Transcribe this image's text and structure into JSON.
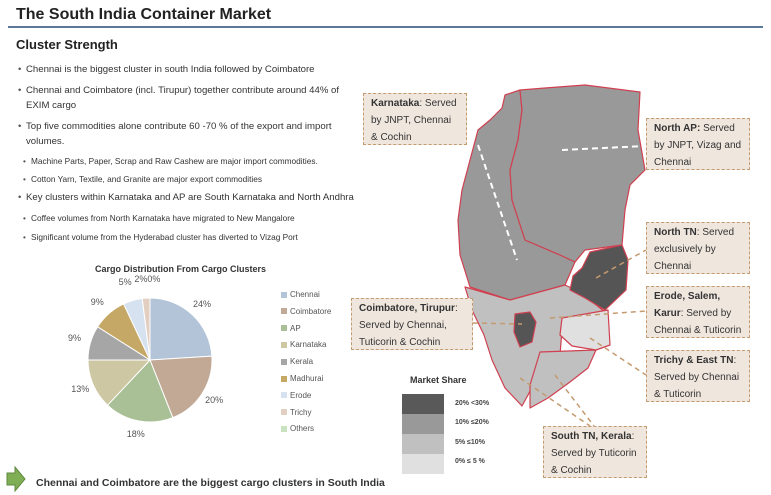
{
  "title": "The South India Container Market",
  "subtitle": "Cluster Strength",
  "bullets": [
    {
      "text": "Chennai is the biggest cluster in south India followed by Coimbatore"
    },
    {
      "text": "Chennai and Coimbatore (incl. Tirupur) together contribute around 44% of",
      "cont": "EXIM cargo"
    },
    {
      "text": "Top five commodities alone contribute 60 -70 % of the export and import",
      "cont": "volumes."
    },
    {
      "text": "Machine Parts, Paper, Scrap and Raw Cashew  are major import commodities."
    },
    {
      "text": "Cotton Yarn, Textile, and Granite are major export commodities"
    },
    {
      "text": "Key clusters within Karnataka and AP are South Karnataka and North Andhra"
    },
    {
      "text": "Coffee volumes from North Karnataka have migrated to New Mangalore"
    },
    {
      "text": "Significant volume from the Hyderabad cluster has diverted to Vizag Port"
    }
  ],
  "chart_data": {
    "type": "pie",
    "title": "Cargo Distribution From Cargo Clusters",
    "categories": [
      "Chennai",
      "Coimbatore",
      "AP",
      "Karnataka",
      "Kerala",
      "Madhurai",
      "Erode",
      "Trichy",
      "Others"
    ],
    "values": [
      24,
      20,
      18,
      13,
      9,
      9,
      5,
      2,
      0
    ],
    "labels": [
      "24%",
      "20%",
      "18%",
      "13%",
      "9%",
      "9%",
      "5%",
      "2%",
      "0%"
    ],
    "colors": [
      "#b3c4d8",
      "#c1a996",
      "#a9bf96",
      "#cdc7a4",
      "#a6a6a6",
      "#c5a865",
      "#d6e2f0",
      "#e2cfc2",
      "#c9e2c0"
    ],
    "legend": "right"
  },
  "map": {
    "callouts": {
      "karnataka": {
        "bold": "Karnataka",
        "text": ": Served by JNPT, Chennai & Cochin"
      },
      "north_ap": {
        "bold": "North AP:",
        "text": " Served by JNPT, Vizag and Chennai"
      },
      "north_tn": {
        "bold": "North TN",
        "text": ": Served exclusively by Chennai"
      },
      "erode": {
        "bold": "Erode, Salem, Karur",
        "text": ": Served by Chennai & Tuticorin"
      },
      "trichy": {
        "bold": "Trichy & East TN",
        "text": ": Served by Chennai & Tuticorin"
      },
      "south_tn": {
        "bold": "South TN, Kerala",
        "text": ": Served by Tuticorin & Cochin"
      },
      "coimbatore": {
        "bold": "Coimbatore, Tirupur",
        "text": ": Served by Chennai, Tuticorin & Cochin"
      }
    },
    "legend": {
      "title": "Market Share",
      "items": [
        {
          "label": "20% <30%",
          "color": "#595959"
        },
        {
          "label": "10% ≤20%",
          "color": "#999999"
        },
        {
          "label": "5%  ≤10%",
          "color": "#c0c0c0"
        },
        {
          "label": "0% ≤ 5 %",
          "color": "#e0e0e0"
        }
      ]
    }
  },
  "conclusion": "Chennai and Coimbatore are the biggest cargo clusters in South India",
  "colors": {
    "rule": "#5a7897",
    "callout_bg": "#efe6de",
    "callout_border": "#c49a70",
    "boundary": "#d04050",
    "arrow": "#7fae55"
  }
}
